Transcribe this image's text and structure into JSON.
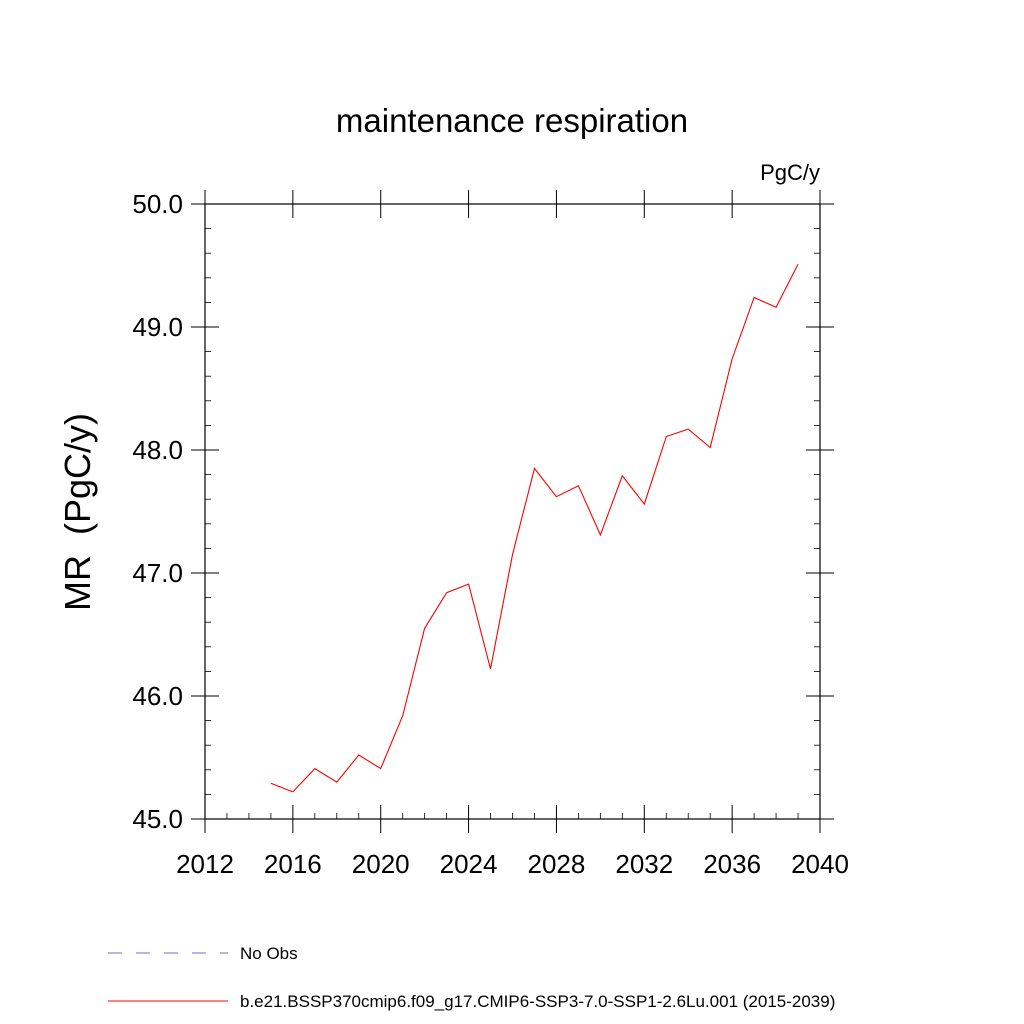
{
  "chart_data": {
    "type": "line",
    "title": "maintenance respiration",
    "units": "PgC/y",
    "ylabel": "MR  (PgC/y)",
    "xlabel": "",
    "xlim": [
      2012,
      2040
    ],
    "ylim": [
      45.0,
      50.0
    ],
    "x_ticks": [
      2012,
      2016,
      2020,
      2024,
      2028,
      2032,
      2036,
      2040
    ],
    "x_tick_labels": [
      "2012",
      "2016",
      "2020",
      "2024",
      "2028",
      "2032",
      "2036",
      "2040"
    ],
    "y_ticks": [
      45.0,
      46.0,
      47.0,
      48.0,
      49.0,
      50.0
    ],
    "y_tick_labels": [
      "45.0",
      "46.0",
      "47.0",
      "48.0",
      "49.0",
      "50.0"
    ],
    "grid": false,
    "legend_position": "bottom-left, below plot",
    "series": [
      {
        "name": "b.e21.BSSP370cmip6.f09_g17.CMIP6-SSP3-7.0-SSP1-2.6Lu.001 (2015-2039)",
        "color": "#ff0000",
        "x": [
          2015,
          2016,
          2017,
          2018,
          2019,
          2020,
          2021,
          2022,
          2023,
          2024,
          2025,
          2026,
          2027,
          2028,
          2029,
          2030,
          2031,
          2032,
          2033,
          2034,
          2035,
          2036,
          2037,
          2038,
          2039
        ],
        "values": [
          45.29,
          45.22,
          45.41,
          45.3,
          45.52,
          45.41,
          45.84,
          46.55,
          46.84,
          46.91,
          46.22,
          47.15,
          47.85,
          47.62,
          47.71,
          47.31,
          47.79,
          47.56,
          48.11,
          48.17,
          48.02,
          48.74,
          49.24,
          49.16,
          49.51
        ]
      }
    ],
    "legend": [
      {
        "label": "No Obs",
        "color": "#7b68c8",
        "style": "dashed"
      },
      {
        "label": "b.e21.BSSP370cmip6.f09_g17.CMIP6-SSP3-7.0-SSP1-2.6Lu.001 (2015-2039)",
        "color": "#ff0000",
        "style": "solid"
      }
    ]
  }
}
